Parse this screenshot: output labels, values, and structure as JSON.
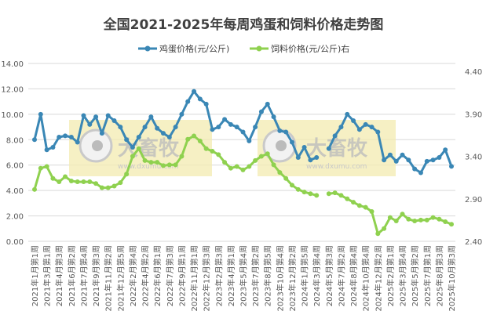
{
  "chart_data": {
    "type": "line",
    "title": "全国2021-2025年每周鸡蛋和饲料价格走势图",
    "watermark": {
      "brand": "大畜牧",
      "url": "www.dxumu.com"
    },
    "legend_position": "top",
    "grid": true,
    "y_left": {
      "ylim": [
        0,
        14
      ],
      "ticks": [
        "0.00",
        "2.00",
        "4.00",
        "6.00",
        "8.00",
        "10.00",
        "12.00",
        "14.00"
      ]
    },
    "y_right": {
      "ylim": [
        2.4,
        4.4
      ],
      "ticks": [
        "2.40",
        "2.90",
        "3.40",
        "3.90",
        "4.40"
      ]
    },
    "categories": [
      "2021年1月第1周",
      "",
      "2021年3月第1周",
      "",
      "2021年4月第3周",
      "",
      "2021年6月第2周",
      "",
      "2021年7月第4周",
      "",
      "2021年9月第3周",
      "",
      "2021年11月第2周",
      "",
      "2021年12月第5周",
      "",
      "2022年2月第4周",
      "",
      "2022年4月第2周",
      "",
      "2022年6月第1周",
      "",
      "2022年7月第3周",
      "",
      "2022年9月第1周",
      "",
      "2022年11月第1周",
      "",
      "2022年12月第3周",
      "",
      "2023年2月第3周",
      "",
      "2023年4月第1周",
      "",
      "2023年5月第4周",
      "",
      "2023年7月第2周",
      "",
      "2023年8月第5周",
      "",
      "2023年10月第4周",
      "",
      "2023年12月第2周",
      "",
      "2024年1月第5周",
      "",
      "2024年3月第4周",
      "",
      "2024年5月第3周",
      "",
      "2024年7月第2周",
      "",
      "2024年8月第4周",
      "",
      "2024年10月第4周",
      "",
      "2024年12月第2周",
      "",
      "2025年2月第1周",
      "",
      "2025年3月第4周",
      "",
      "2025年5月第2周",
      "",
      "2025年7月第1周",
      "",
      "2025年8月第3周",
      "",
      "2025年10月第3周"
    ],
    "series": [
      {
        "name": "鸡蛋价格(元/公斤)",
        "axis": "left",
        "color": "#3a87b5",
        "values": [
          8.0,
          10.0,
          7.2,
          7.4,
          8.2,
          8.3,
          8.2,
          7.8,
          9.9,
          9.2,
          9.8,
          8.5,
          9.9,
          9.5,
          9.0,
          8.0,
          7.4,
          8.2,
          9.0,
          9.8,
          8.9,
          8.5,
          8.2,
          9.0,
          10.0,
          11.0,
          11.8,
          11.2,
          10.8,
          8.8,
          9.0,
          9.6,
          9.2,
          9.0,
          8.6,
          7.9,
          9.0,
          10.2,
          10.8,
          9.8,
          8.7,
          8.6,
          7.8,
          6.6,
          7.4,
          6.4,
          6.6,
          null,
          7.3,
          8.3,
          9.0,
          10.0,
          9.5,
          8.8,
          9.2,
          9.0,
          8.6,
          6.4,
          6.8,
          6.3,
          6.8,
          6.4,
          5.7,
          5.4,
          6.3,
          6.4,
          6.6,
          7.2,
          5.9
        ]
      },
      {
        "name": "饲料价格(元/公斤)右",
        "axis": "right",
        "color": "#8fd14f",
        "values": [
          3.01,
          3.26,
          3.28,
          3.14,
          3.1,
          3.16,
          3.11,
          3.1,
          3.1,
          3.1,
          3.08,
          3.03,
          3.03,
          3.05,
          3.09,
          3.19,
          3.4,
          3.49,
          3.35,
          3.33,
          3.33,
          3.29,
          3.3,
          3.3,
          3.4,
          3.6,
          3.64,
          3.58,
          3.49,
          3.46,
          3.42,
          3.33,
          3.26,
          3.28,
          3.24,
          3.28,
          3.35,
          3.4,
          3.43,
          3.3,
          3.21,
          3.14,
          3.06,
          3.01,
          2.98,
          2.96,
          2.94,
          null,
          2.96,
          2.97,
          2.94,
          2.9,
          2.86,
          2.82,
          2.8,
          2.75,
          2.49,
          2.55,
          2.68,
          2.64,
          2.72,
          2.66,
          2.64,
          2.65,
          2.65,
          2.68,
          2.66,
          2.63,
          2.6
        ]
      }
    ]
  }
}
